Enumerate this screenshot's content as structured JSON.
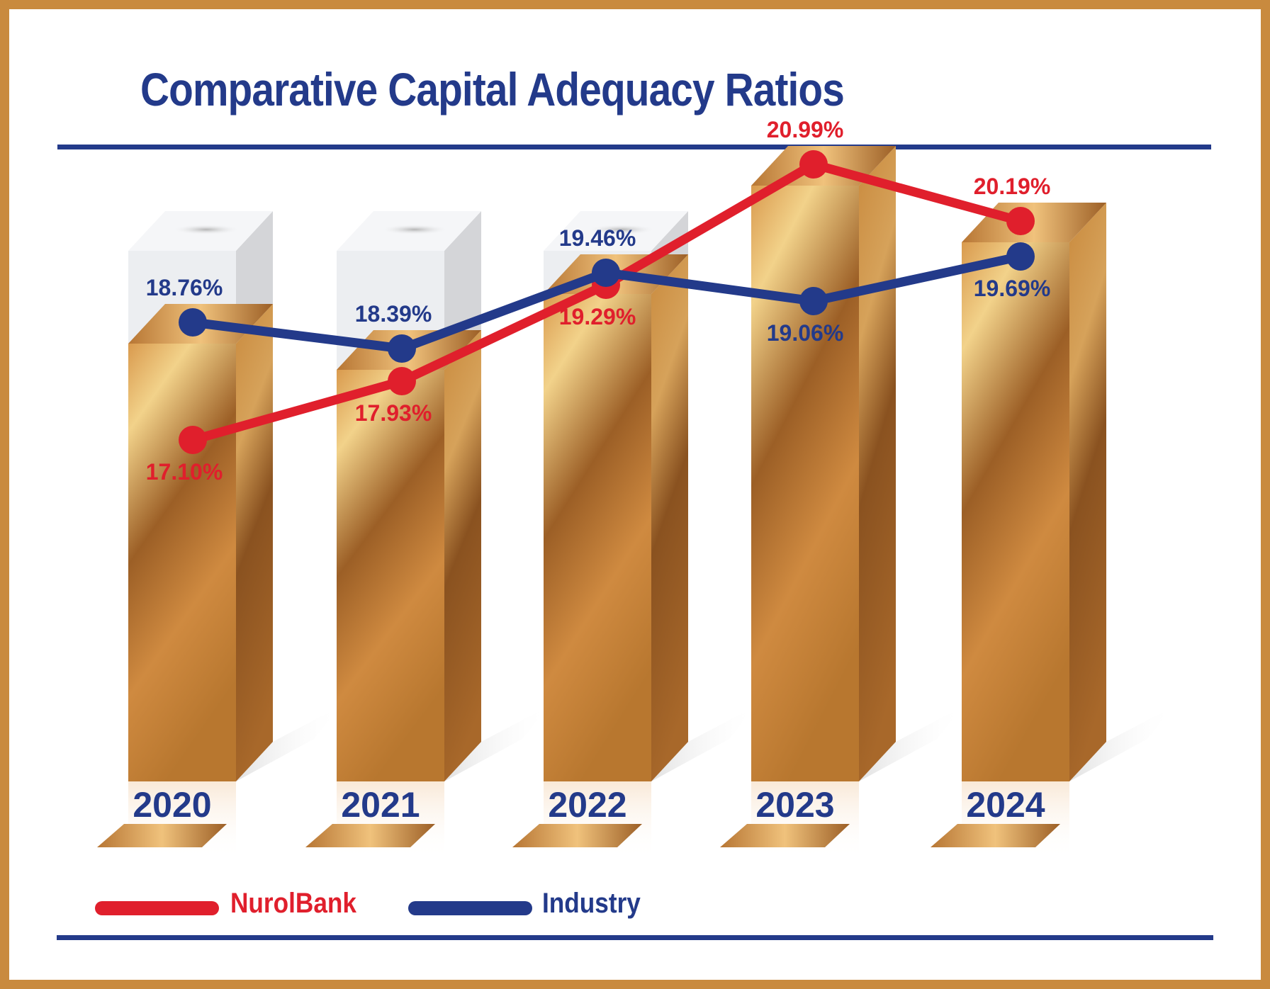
{
  "title": "Comparative Capital Adequacy Ratios",
  "colors": {
    "nurolbank": "#e01f2c",
    "industry": "#233a8a",
    "border": "#c98a3e",
    "bar_gold": "#c98a3e"
  },
  "chart_data": {
    "type": "line",
    "title": "Comparative Capital Adequacy Ratios",
    "categories": [
      "2020",
      "2021",
      "2022",
      "2023",
      "2024"
    ],
    "series": [
      {
        "name": "NurolBank",
        "values": [
          17.1,
          17.93,
          19.29,
          20.99,
          20.19
        ],
        "labels": [
          "17.10%",
          "17.93%",
          "19.29%",
          "20.99%",
          "20.19%"
        ]
      },
      {
        "name": "Industry",
        "values": [
          18.76,
          18.39,
          19.46,
          19.06,
          19.69
        ],
        "labels": [
          "18.76%",
          "18.39%",
          "19.46%",
          "19.06%",
          "19.69%"
        ]
      }
    ],
    "ylabel": "",
    "xlabel": "",
    "grid": false,
    "legend_position": "bottom-left"
  }
}
